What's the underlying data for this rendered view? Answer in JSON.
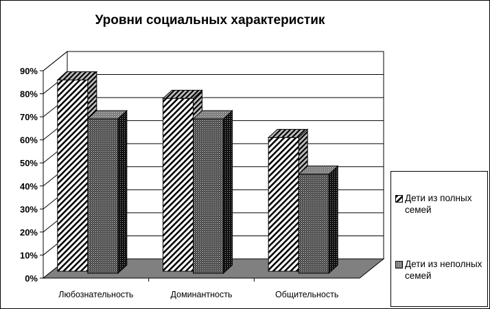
{
  "chart_data": {
    "type": "bar",
    "title": "Уровни социальных характеристик",
    "categories": [
      "Любознательность",
      "Доминантность",
      "Общительность"
    ],
    "series": [
      {
        "name": "Дети из полных семей",
        "values": [
          83,
          75,
          58
        ],
        "pattern": "diagonal-hatch"
      },
      {
        "name": "Дети из неполных семей",
        "values": [
          67,
          67,
          43
        ],
        "pattern": "dense-dots"
      }
    ],
    "ylim": [
      0,
      90
    ],
    "yticks": [
      "0%",
      "10%",
      "20%",
      "30%",
      "40%",
      "50%",
      "60%",
      "70%",
      "80%",
      "90%"
    ],
    "grid": true,
    "legend": "right",
    "three_d": true
  }
}
